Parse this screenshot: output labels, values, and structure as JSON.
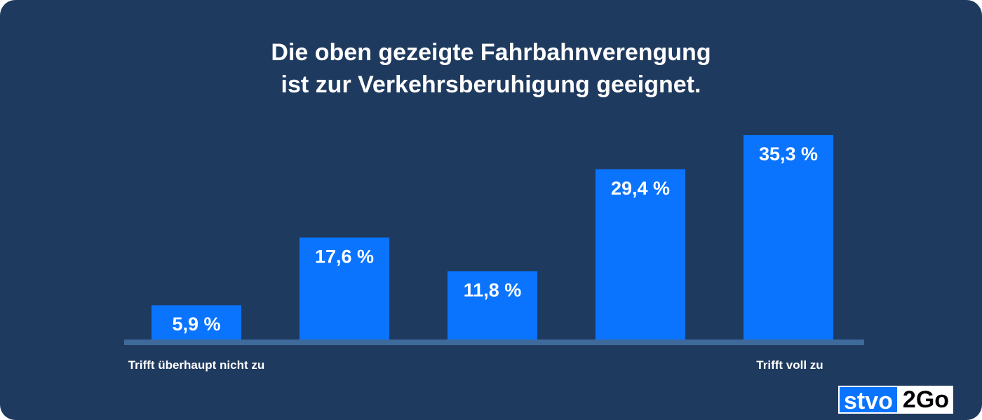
{
  "title": {
    "line1": "Die oben gezeigte Fahrbahnverengung",
    "line2": "ist zur Verkehrsberuhigung geeignet."
  },
  "axis_end_labels": {
    "left": "Trifft überhaupt nicht zu",
    "right": "Trifft voll zu"
  },
  "logo": {
    "part1": "stvo",
    "part2": "2Go"
  },
  "colors": {
    "background": "#1f3a5f",
    "bar": "#0a74ff",
    "baseline": "#3d6a9a",
    "text": "#ffffff"
  },
  "chart_data": {
    "type": "bar",
    "categories": [
      "",
      "",
      "",
      "",
      ""
    ],
    "values": [
      5.9,
      17.6,
      11.8,
      29.4,
      35.3
    ],
    "data_labels": [
      "5,9 %",
      "17,6 %",
      "11,8 %",
      "29,4 %",
      "35,3 %"
    ],
    "title": "Die oben gezeigte Fahrbahnverengung ist zur Verkehrsberuhigung geeignet.",
    "xlabel": "",
    "ylabel": "",
    "ylim": [
      0,
      35.3
    ],
    "grid": false,
    "legend": "none"
  }
}
